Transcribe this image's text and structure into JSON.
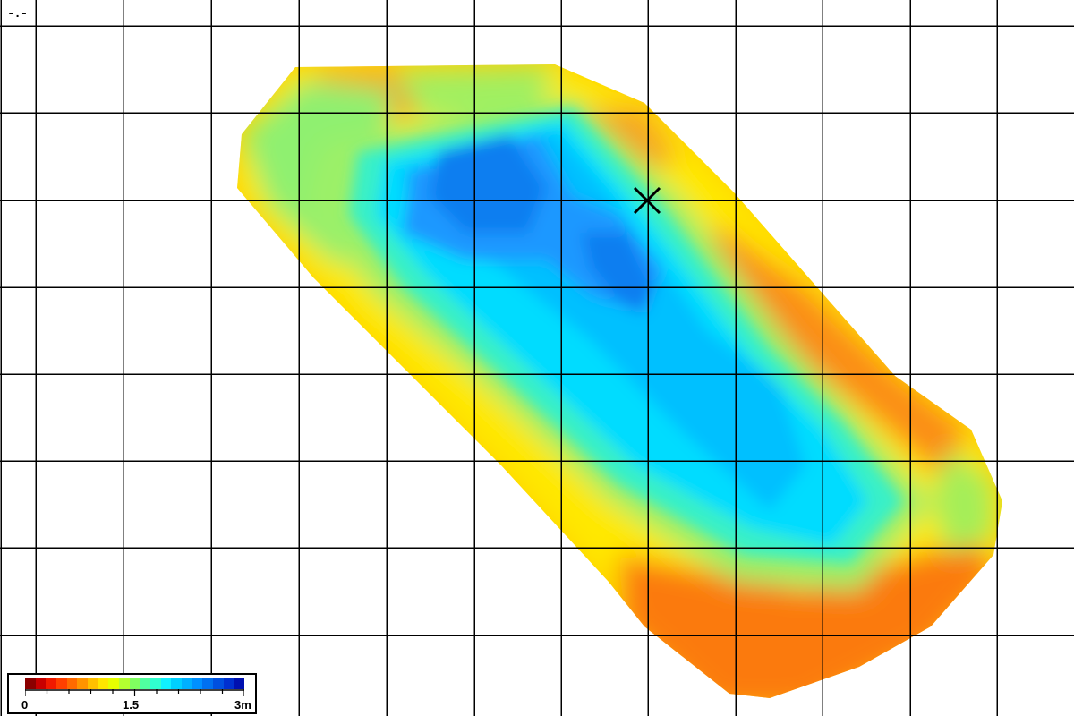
{
  "top_readout": "-.-",
  "legend": {
    "colors": [
      "#8b0000",
      "#c80000",
      "#f01a00",
      "#ff4000",
      "#ff6a00",
      "#ff9400",
      "#ffc000",
      "#ffe600",
      "#e6ff00",
      "#b4ff30",
      "#80ff60",
      "#50ffa0",
      "#30ffd0",
      "#10f0ff",
      "#00d0ff",
      "#00b0ff",
      "#0090ff",
      "#0070f0",
      "#0050e0",
      "#0030d0",
      "#0010b0"
    ],
    "label_min": "0",
    "label_mid": "1.5",
    "label_max": "3m",
    "tick_count": 10
  },
  "map": {
    "marker_icon": "x-marker-icon",
    "depth_colors": {
      "orange": "#f98a18",
      "yellow": "#ffff00",
      "lime": "#c8ff30",
      "green": "#a0f060",
      "teal": "#38f0c0",
      "cyan": "#00d8ff",
      "sky": "#00b8ff",
      "blue": "#1f96ff",
      "deep": "#0e7cf0"
    }
  }
}
